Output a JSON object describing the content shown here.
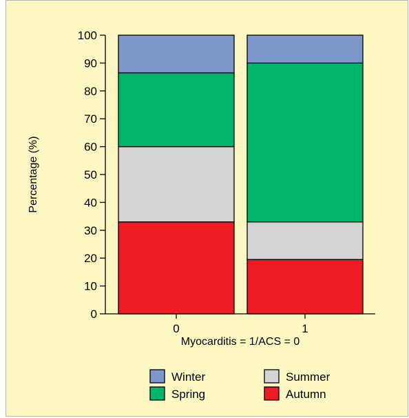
{
  "chart_data": {
    "type": "bar",
    "stacked": true,
    "title": "",
    "xlabel": "Myocarditis = 1/ACS = 0",
    "ylabel": "Percentage (%)",
    "ylim": [
      0,
      100
    ],
    "yticks": [
      0,
      10,
      20,
      30,
      40,
      50,
      60,
      70,
      80,
      90,
      100
    ],
    "categories": [
      "0",
      "1"
    ],
    "series": [
      {
        "name": "Autumn",
        "color": "#ed1c24",
        "values": [
          33,
          19.5
        ]
      },
      {
        "name": "Summer",
        "color": "#d4d4d4",
        "values": [
          27,
          13.5
        ]
      },
      {
        "name": "Spring",
        "color": "#00b46b",
        "values": [
          26.5,
          57
        ]
      },
      {
        "name": "Winter",
        "color": "#7e97cb",
        "values": [
          13.5,
          10
        ]
      }
    ],
    "legend": {
      "placement": "bottom",
      "order": [
        "Winter",
        "Summer",
        "Spring",
        "Autumn"
      ]
    },
    "grid": false
  }
}
